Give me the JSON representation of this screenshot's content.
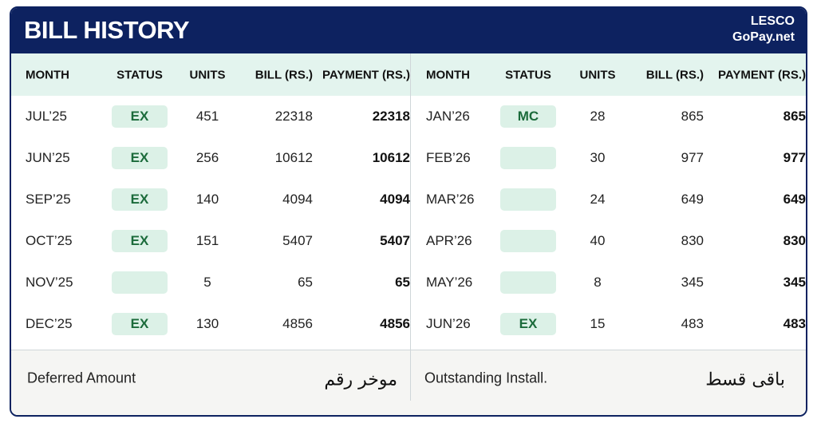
{
  "header": {
    "title": "BILL HISTORY",
    "brand": "LESCO",
    "site": "GoPay.net"
  },
  "tables": [
    {
      "columns": [
        "MONTH",
        "STATUS",
        "UNITS",
        "BILL (RS.)",
        "PAYMENT (RS.)"
      ],
      "rows": [
        [
          "JUL’25",
          "EX",
          451,
          22318,
          22318
        ],
        [
          "JUN’25",
          "EX",
          256,
          10612,
          10612
        ],
        [
          "SEP’25",
          "EX",
          140,
          4094,
          4094
        ],
        [
          "OCT’25",
          "EX",
          151,
          5407,
          5407
        ],
        [
          "NOV’25",
          null,
          5,
          65,
          65
        ],
        [
          "DEC’25",
          "EX",
          130,
          4856,
          4856
        ]
      ],
      "footer": {
        "label": "Deferred Amount",
        "urdu": "موخر رقم"
      }
    },
    {
      "columns": [
        "MONTH",
        "STATUS",
        "UNITS",
        "BILL (RS.)",
        "PAYMENT (RS.)"
      ],
      "rows": [
        [
          "JAN’26",
          "MC",
          28,
          865,
          865
        ],
        [
          "FEB’26",
          null,
          30,
          977,
          977
        ],
        [
          "MAR’26",
          null,
          24,
          649,
          649
        ],
        [
          "APR’26",
          null,
          40,
          830,
          830
        ],
        [
          "MAY’26",
          null,
          8,
          345,
          345
        ],
        [
          "JUN’26",
          "EX",
          15,
          483,
          483
        ]
      ],
      "footer": {
        "label": "Outstanding Install.",
        "urdu": "باقی قسط"
      }
    }
  ]
}
